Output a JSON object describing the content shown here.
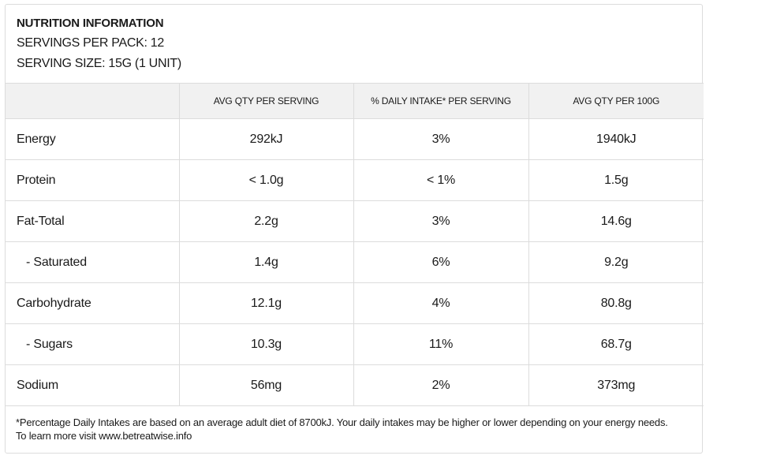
{
  "header": {
    "title": "NUTRITION INFORMATION",
    "servings_per_pack": "SERVINGS PER PACK: 12",
    "serving_size": "SERVING SIZE: 15G (1 UNIT)"
  },
  "table": {
    "columns": [
      "",
      "AVG QTY PER SERVING",
      "% DAILY INTAKE* PER SERVING",
      "AVG QTY PER 100G"
    ],
    "rows": [
      {
        "label": "Energy",
        "indent": false,
        "per_serving": "292kJ",
        "daily_intake": "3%",
        "per_100g": "1940kJ"
      },
      {
        "label": "Protein",
        "indent": false,
        "per_serving": "< 1.0g",
        "daily_intake": "< 1%",
        "per_100g": "1.5g"
      },
      {
        "label": "Fat-Total",
        "indent": false,
        "per_serving": "2.2g",
        "daily_intake": "3%",
        "per_100g": "14.6g"
      },
      {
        "label": "- Saturated",
        "indent": true,
        "per_serving": "1.4g",
        "daily_intake": "6%",
        "per_100g": "9.2g"
      },
      {
        "label": "Carbohydrate",
        "indent": false,
        "per_serving": "12.1g",
        "daily_intake": "4%",
        "per_100g": "80.8g"
      },
      {
        "label": "- Sugars",
        "indent": true,
        "per_serving": "10.3g",
        "daily_intake": "11%",
        "per_100g": "68.7g"
      },
      {
        "label": "Sodium",
        "indent": false,
        "per_serving": "56mg",
        "daily_intake": "2%",
        "per_100g": "373mg"
      }
    ]
  },
  "footnote": {
    "line1": "*Percentage Daily Intakes are based on an average adult diet of 8700kJ. Your daily intakes may be higher or lower depending on your energy needs.",
    "line2": "To learn more visit www.betreatwise.info"
  }
}
